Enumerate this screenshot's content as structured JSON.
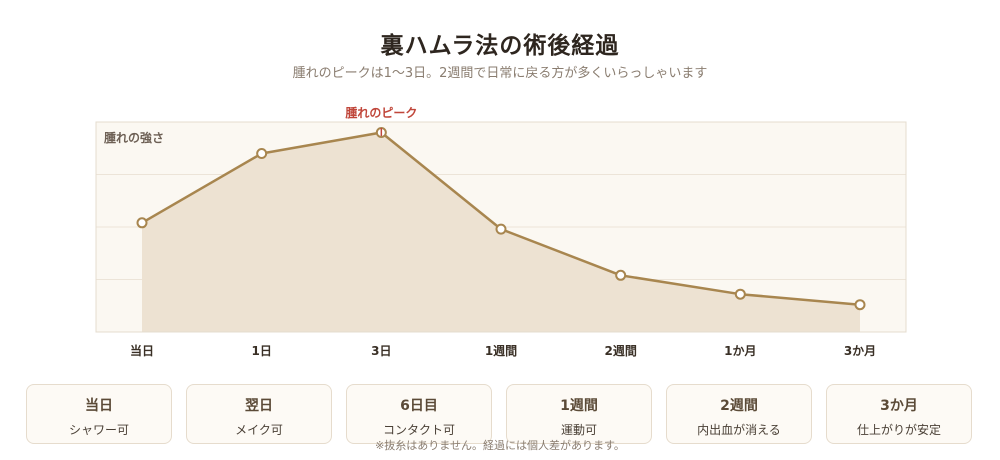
{
  "header": {
    "title": "裏ハムラ法の術後経過",
    "subtitle": "腫れのピークは1〜3日。2週間で日常に戻る方が多くいらっしゃいます"
  },
  "chart_data": {
    "type": "area",
    "ylabel": "腫れの強さ",
    "categories": [
      "当日",
      "1日",
      "3日",
      "1週間",
      "2週間",
      "1か月",
      "3か月"
    ],
    "series": [
      {
        "values": [
          52,
          85,
          95,
          49,
          27,
          18,
          13
        ]
      }
    ],
    "ylim": [
      0,
      100
    ],
    "grid": true,
    "annotation": {
      "category": "3日",
      "text": "腫れのピーク",
      "color": "#c0463a"
    },
    "colors": {
      "line": "#a8864f",
      "fill": "#ede2d2",
      "plot_bg": "#fbf8f2",
      "grid": "#ece4d8",
      "border": "#e4dccf",
      "marker_fill": "#ffffff"
    }
  },
  "milestones": [
    {
      "label": "当日",
      "desc": "シャワー可"
    },
    {
      "label": "翌日",
      "desc": "メイク可"
    },
    {
      "label": "6日目",
      "desc": "コンタクト可"
    },
    {
      "label": "1週間",
      "desc": "運動可"
    },
    {
      "label": "2週間",
      "desc": "内出血が消える"
    },
    {
      "label": "3か月",
      "desc": "仕上がりが安定"
    }
  ],
  "footnote": "※抜糸はありません。経過には個人差があります。"
}
